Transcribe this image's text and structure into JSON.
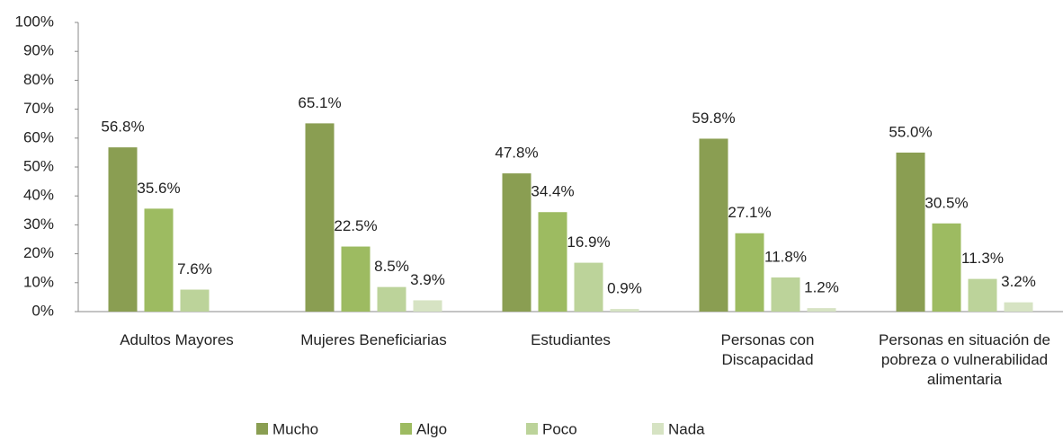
{
  "chart_data": {
    "type": "bar",
    "categories": [
      "Adultos Mayores",
      "Mujeres Beneficiarias",
      "Estudiantes",
      "Personas con Discapacidad",
      "Personas en situación de pobreza o vulnerabilidad alimentaria"
    ],
    "series": [
      {
        "name": "Mucho",
        "color": "#8a9e52",
        "values": [
          56.8,
          65.1,
          47.8,
          59.8,
          55.0
        ],
        "value_labels": [
          "56.8%",
          "65.1%",
          "47.8%",
          "59.8%",
          "55.0%"
        ]
      },
      {
        "name": "Algo",
        "color": "#9dbb61",
        "values": [
          35.6,
          22.5,
          34.4,
          27.1,
          30.5
        ],
        "value_labels": [
          "35.6%",
          "22.5%",
          "34.4%",
          "27.1%",
          "30.5%"
        ]
      },
      {
        "name": "Poco",
        "color": "#bcd39a",
        "values": [
          7.6,
          8.5,
          16.9,
          11.8,
          11.3
        ],
        "value_labels": [
          "7.6%",
          "8.5%",
          "16.9%",
          "11.8%",
          "11.3%"
        ]
      },
      {
        "name": "Nada",
        "color": "#d6e3c3",
        "values": [
          null,
          3.9,
          0.9,
          1.2,
          3.2
        ],
        "value_labels": [
          null,
          "3.9%",
          "0.9%",
          "1.2%",
          "3.2%"
        ]
      }
    ],
    "ylim": [
      0,
      100
    ],
    "yticks": [
      {
        "value": 0,
        "label": "0%"
      },
      {
        "value": 10,
        "label": "10%"
      },
      {
        "value": 20,
        "label": "20%"
      },
      {
        "value": 30,
        "label": "30%"
      },
      {
        "value": 40,
        "label": "40%"
      },
      {
        "value": 50,
        "label": "50%"
      },
      {
        "value": 60,
        "label": "60%"
      },
      {
        "value": 70,
        "label": "70%"
      },
      {
        "value": 80,
        "label": "80%"
      },
      {
        "value": 90,
        "label": "90%"
      },
      {
        "value": 100,
        "label": "100%"
      }
    ],
    "legend": "bottom"
  }
}
